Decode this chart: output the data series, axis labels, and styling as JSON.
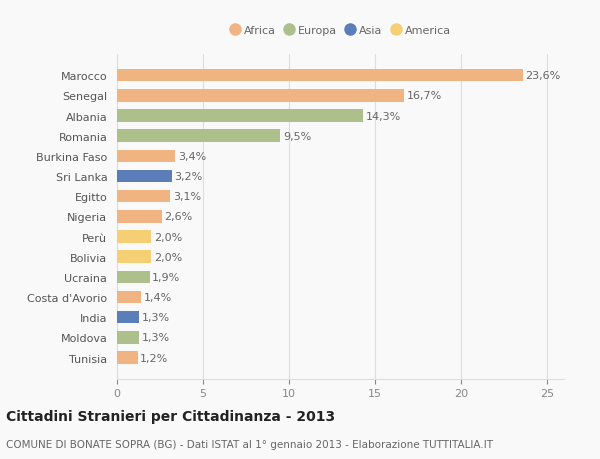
{
  "countries": [
    "Tunisia",
    "Moldova",
    "India",
    "Costa d'Avorio",
    "Ucraina",
    "Bolivia",
    "Perù",
    "Nigeria",
    "Egitto",
    "Sri Lanka",
    "Burkina Faso",
    "Romania",
    "Albania",
    "Senegal",
    "Marocco"
  ],
  "values": [
    1.2,
    1.3,
    1.3,
    1.4,
    1.9,
    2.0,
    2.0,
    2.6,
    3.1,
    3.2,
    3.4,
    9.5,
    14.3,
    16.7,
    23.6
  ],
  "continents": [
    "Africa",
    "Europa",
    "Asia",
    "Africa",
    "Europa",
    "America",
    "America",
    "Africa",
    "Africa",
    "Asia",
    "Africa",
    "Europa",
    "Europa",
    "Africa",
    "Africa"
  ],
  "colors": {
    "Africa": "#F0B482",
    "Europa": "#ADBF8A",
    "Asia": "#5B7DB8",
    "America": "#F5CF74"
  },
  "title": "Cittadini Stranieri per Cittadinanza - 2013",
  "subtitle": "COMUNE DI BONATE SOPRA (BG) - Dati ISTAT al 1° gennaio 2013 - Elaborazione TUTTITALIA.IT",
  "xlim": [
    0,
    26
  ],
  "xticks": [
    0,
    5,
    10,
    15,
    20,
    25
  ],
  "background_color": "#f9f9f9",
  "grid_color": "#dddddd",
  "bar_height": 0.62,
  "title_fontsize": 10,
  "subtitle_fontsize": 7.5,
  "label_fontsize": 8,
  "tick_fontsize": 8,
  "legend_order": [
    "Africa",
    "Europa",
    "Asia",
    "America"
  ]
}
